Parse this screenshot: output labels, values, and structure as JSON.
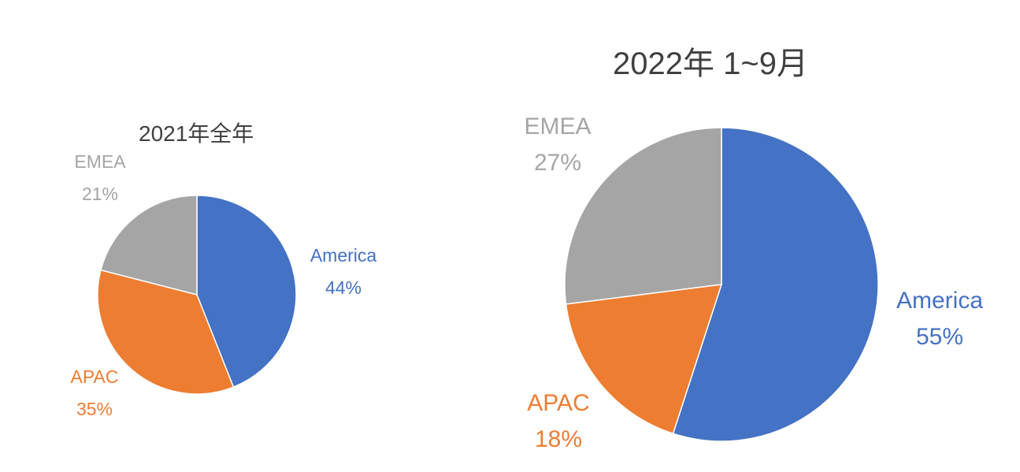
{
  "chart_data": [
    {
      "type": "pie",
      "title": "2021年全年",
      "categories": [
        "America",
        "APAC",
        "EMEA"
      ],
      "values": [
        44,
        35,
        21
      ],
      "value_labels": [
        "44%",
        "35%",
        "21%"
      ],
      "colors": [
        "#4472C4",
        "#ED7D31",
        "#A5A5A5"
      ],
      "label_colors": [
        "#4472C4",
        "#ED7D31",
        "#A5A5A5"
      ],
      "legend": "none"
    },
    {
      "type": "pie",
      "title": "2022年 1~9月",
      "categories": [
        "America",
        "APAC",
        "EMEA"
      ],
      "values": [
        55,
        18,
        27
      ],
      "value_labels": [
        "55%",
        "18%",
        "27%"
      ],
      "colors": [
        "#4472C4",
        "#ED7D31",
        "#A5A5A5"
      ],
      "label_colors": [
        "#4472C4",
        "#ED7D31",
        "#A5A5A5"
      ],
      "legend": "none"
    }
  ]
}
